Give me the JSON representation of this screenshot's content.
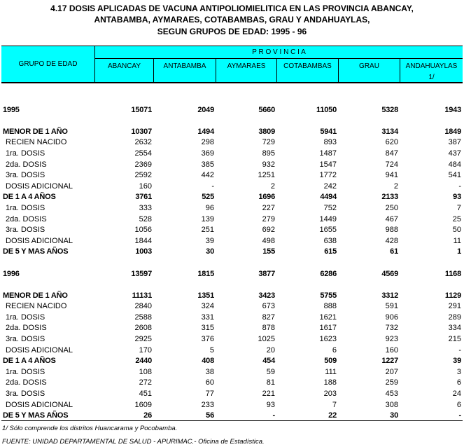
{
  "title": [
    "4.17  DOSIS APLICADAS DE VACUNA ANTIPOLIOMIELITICA EN LAS PROVINCIA ABANCAY,",
    "ANTABAMBA, AYMARAES, COTABAMBAS, GRAU Y ANDAHUAYLAS,",
    "SEGUN GRUPOS DE EDAD: 1995 - 96"
  ],
  "header": {
    "group": "GRUPO DE EDAD",
    "provincia": "P R O V I N C I A",
    "columns": [
      "ABANCAY",
      "ANTABAMBA",
      "AYMARAES",
      "COTABAMBAS",
      "GRAU",
      "ANDAHUAYLAS"
    ],
    "andahuaylas_note": "1/"
  },
  "header_color": "#00ffff",
  "rows": [
    {
      "t": "s"
    },
    {
      "t": "b",
      "label": "1995",
      "v": [
        "15071",
        "2049",
        "5660",
        "11050",
        "5328",
        "1943"
      ]
    },
    {
      "t": "s"
    },
    {
      "t": "b",
      "label": "MENOR DE 1 AÑO",
      "v": [
        "10307",
        "1494",
        "3809",
        "5941",
        "3134",
        "1849"
      ]
    },
    {
      "t": "n",
      "label": "RECIEN NACIDO",
      "v": [
        "2632",
        "298",
        "729",
        "893",
        "620",
        "387"
      ]
    },
    {
      "t": "n",
      "label": "1ra. DOSIS",
      "v": [
        "2554",
        "369",
        "895",
        "1487",
        "847",
        "437"
      ]
    },
    {
      "t": "n",
      "label": "2da. DOSIS",
      "v": [
        "2369",
        "385",
        "932",
        "1547",
        "724",
        "484"
      ]
    },
    {
      "t": "n",
      "label": "3ra. DOSIS",
      "v": [
        "2592",
        "442",
        "1251",
        "1772",
        "941",
        "541"
      ]
    },
    {
      "t": "n",
      "label": "DOSIS ADICIONAL",
      "v": [
        "160",
        "-",
        "2",
        "242",
        "2",
        "-"
      ]
    },
    {
      "t": "b",
      "label": "DE 1 A 4 AÑOS",
      "v": [
        "3761",
        "525",
        "1696",
        "4494",
        "2133",
        "93"
      ]
    },
    {
      "t": "n",
      "label": "1ra. DOSIS",
      "v": [
        "333",
        "96",
        "227",
        "752",
        "250",
        "7"
      ]
    },
    {
      "t": "n",
      "label": "2da. DOSIS",
      "v": [
        "528",
        "139",
        "279",
        "1449",
        "467",
        "25"
      ]
    },
    {
      "t": "n",
      "label": "3ra. DOSIS",
      "v": [
        "1056",
        "251",
        "692",
        "1655",
        "988",
        "50"
      ]
    },
    {
      "t": "n",
      "label": "DOSIS ADICIONAL",
      "v": [
        "1844",
        "39",
        "498",
        "638",
        "428",
        "11"
      ]
    },
    {
      "t": "b",
      "label": "DE 5 Y MAS AÑOS",
      "v": [
        "1003",
        "30",
        "155",
        "615",
        "61",
        "1"
      ]
    },
    {
      "t": "s"
    },
    {
      "t": "b",
      "label": "1996",
      "v": [
        "13597",
        "1815",
        "3877",
        "6286",
        "4569",
        "1168"
      ]
    },
    {
      "t": "s"
    },
    {
      "t": "b",
      "label": "MENOR DE 1 AÑO",
      "v": [
        "11131",
        "1351",
        "3423",
        "5755",
        "3312",
        "1129"
      ]
    },
    {
      "t": "n",
      "label": "RECIEN NACIDO",
      "v": [
        "2840",
        "324",
        "673",
        "888",
        "591",
        "291"
      ]
    },
    {
      "t": "n",
      "label": "1ra. DOSIS",
      "v": [
        "2588",
        "331",
        "827",
        "1621",
        "906",
        "289"
      ]
    },
    {
      "t": "n",
      "label": "2da. DOSIS",
      "v": [
        "2608",
        "315",
        "878",
        "1617",
        "732",
        "334"
      ]
    },
    {
      "t": "n",
      "label": "3ra. DOSIS",
      "v": [
        "2925",
        "376",
        "1025",
        "1623",
        "923",
        "215"
      ]
    },
    {
      "t": "n",
      "label": "DOSIS ADICIONAL",
      "v": [
        "170",
        "5",
        "20",
        "6",
        "160",
        "-"
      ]
    },
    {
      "t": "b",
      "label": "DE 1 A 4 AÑOS",
      "v": [
        "2440",
        "408",
        "454",
        "509",
        "1227",
        "39"
      ]
    },
    {
      "t": "n",
      "label": "1ra. DOSIS",
      "v": [
        "108",
        "38",
        "59",
        "111",
        "207",
        "3"
      ]
    },
    {
      "t": "n",
      "label": "2da. DOSIS",
      "v": [
        "272",
        "60",
        "81",
        "188",
        "259",
        "6"
      ]
    },
    {
      "t": "n",
      "label": "3ra. DOSIS",
      "v": [
        "451",
        "77",
        "221",
        "203",
        "453",
        "24"
      ]
    },
    {
      "t": "n",
      "label": "DOSIS ADICIONAL",
      "v": [
        "1609",
        "233",
        "93",
        "7",
        "308",
        "6"
      ]
    },
    {
      "t": "b",
      "label": "DE 5 Y MAS AÑOS",
      "v": [
        "26",
        "56",
        "-",
        "22",
        "30",
        "-"
      ]
    }
  ],
  "footnote": "1/ Sólo comprende los distritos Huancarama y Pocobamba.",
  "source": "FUENTE: UNIDAD DEPARTAMENTAL DE SALUD - APURIMAC.- Oficina de Estadística."
}
